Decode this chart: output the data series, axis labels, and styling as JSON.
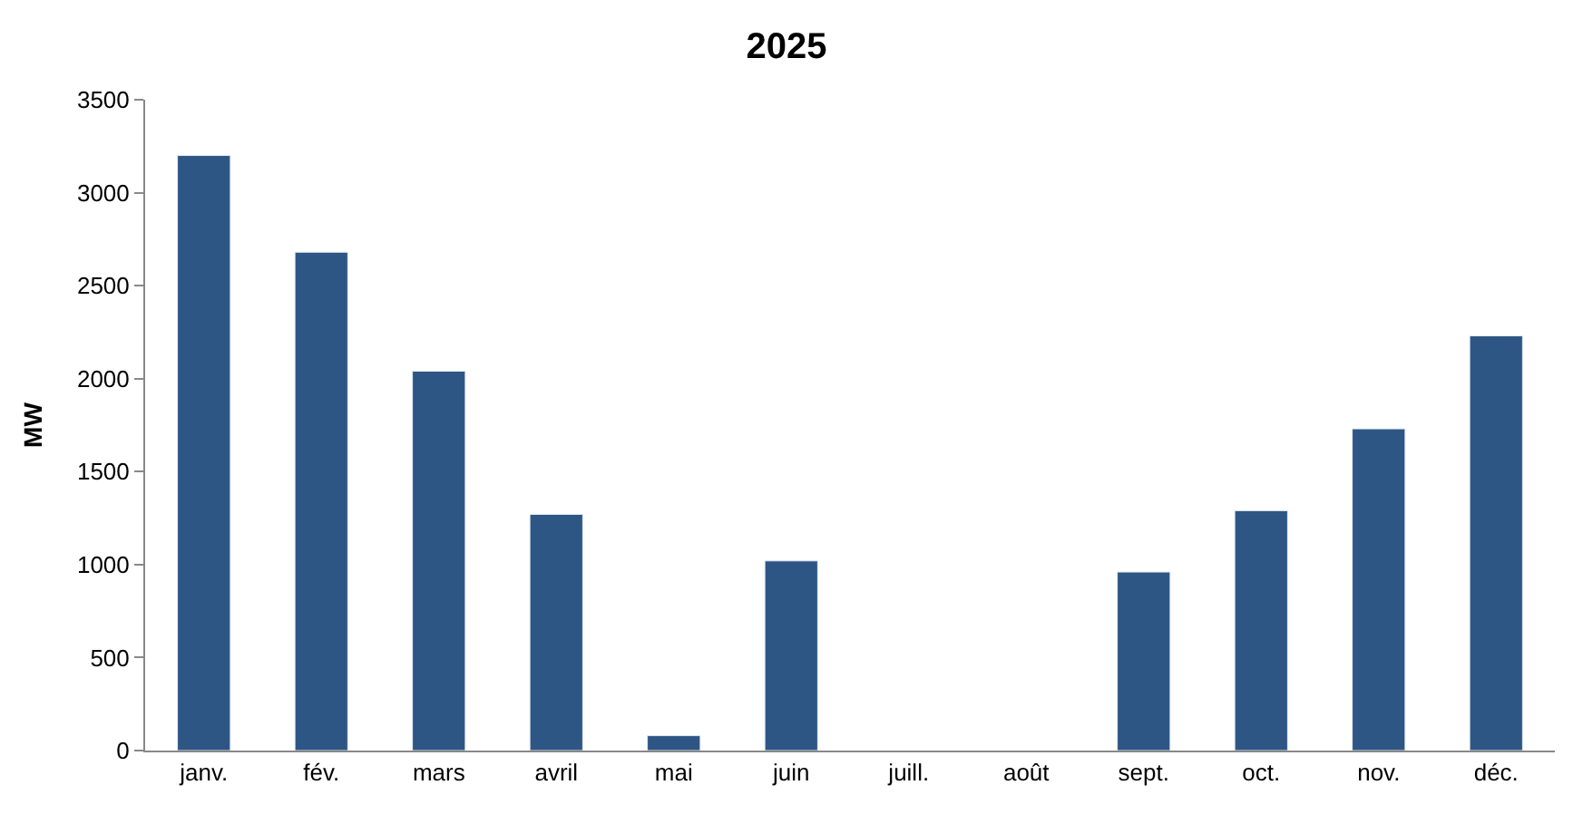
{
  "chart_data": {
    "type": "bar",
    "title": "2025",
    "ylabel": "MW",
    "categories": [
      "janv.",
      "fév.",
      "mars",
      "avril",
      "mai",
      "juin",
      "juill.",
      "août",
      "sept.",
      "oct.",
      "nov.",
      "déc."
    ],
    "values": [
      3200,
      2680,
      2040,
      1270,
      80,
      1020,
      null,
      null,
      960,
      1290,
      1730,
      2230
    ],
    "color": "#2e5684",
    "ylim": [
      0,
      3500
    ],
    "yticks": [
      0,
      500,
      1000,
      1500,
      2000,
      2500,
      3000,
      3500
    ],
    "legend": false
  }
}
